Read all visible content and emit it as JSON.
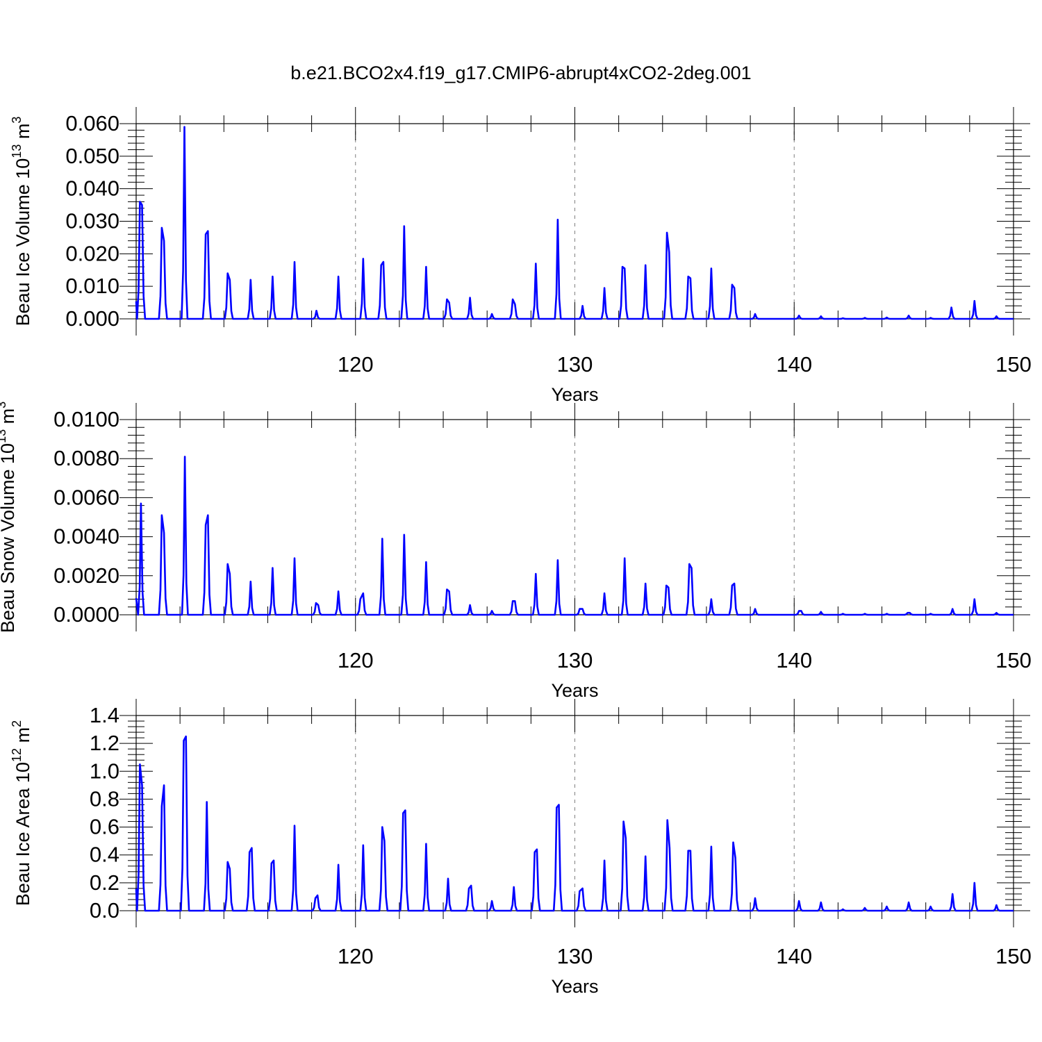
{
  "figure": {
    "title": "b.e21.BCO2x4.f19_g17.CMIP6-abrupt4xCO2-2deg.001"
  },
  "colors": {
    "series": "#0000ff",
    "axis": "#000000",
    "grid": "#7f7f7f"
  },
  "chart_data": [
    {
      "type": "line",
      "ylabel": {
        "text": "Beau Ice Volume 10",
        "sup": "13",
        "unit": " m",
        "unit_sup": "3"
      },
      "xlabel": "Years",
      "xlim": [
        110,
        150
      ],
      "ylim": [
        0,
        0.06
      ],
      "xticks": [
        120,
        130,
        140,
        150
      ],
      "yticks": [
        0,
        0.01,
        0.02,
        0.03,
        0.04,
        0.05,
        0.06
      ],
      "ytick_labels": [
        "0.000",
        "0.010",
        "0.020",
        "0.030",
        "0.040",
        "0.050",
        "0.060"
      ],
      "grid": "dashed vertical at major x ticks",
      "series": [
        {
          "peaks": [
            [
              110.17,
              0.036
            ],
            [
              110.27,
              0.035
            ],
            [
              111.17,
              0.028
            ],
            [
              111.27,
              0.024
            ],
            [
              112.2,
              0.059
            ],
            [
              113.17,
              0.026
            ],
            [
              113.27,
              0.027
            ],
            [
              114.17,
              0.014
            ],
            [
              114.27,
              0.012
            ],
            [
              115.22,
              0.012
            ],
            [
              116.22,
              0.013
            ],
            [
              117.22,
              0.0175
            ],
            [
              118.22,
              0.0025
            ],
            [
              119.22,
              0.013
            ],
            [
              120.35,
              0.0185
            ],
            [
              121.17,
              0.0165
            ],
            [
              121.27,
              0.0175
            ],
            [
              122.22,
              0.0285
            ],
            [
              123.22,
              0.016
            ],
            [
              124.17,
              0.006
            ],
            [
              124.27,
              0.005
            ],
            [
              125.22,
              0.0065
            ],
            [
              126.22,
              0.0015
            ],
            [
              127.17,
              0.006
            ],
            [
              127.27,
              0.0045
            ],
            [
              128.22,
              0.017
            ],
            [
              129.22,
              0.0305
            ],
            [
              130.35,
              0.004
            ],
            [
              131.35,
              0.0095
            ],
            [
              132.17,
              0.016
            ],
            [
              132.27,
              0.0155
            ],
            [
              133.22,
              0.0165
            ],
            [
              134.2,
              0.0265
            ],
            [
              134.3,
              0.0205
            ],
            [
              135.17,
              0.013
            ],
            [
              135.27,
              0.0125
            ],
            [
              136.22,
              0.0155
            ],
            [
              137.17,
              0.0105
            ],
            [
              137.27,
              0.0095
            ],
            [
              138.22,
              0.0015
            ],
            [
              140.22,
              0.001
            ],
            [
              141.22,
              0.0008
            ],
            [
              142.22,
              0.0002
            ],
            [
              143.22,
              0.0003
            ],
            [
              144.22,
              0.0004
            ],
            [
              145.22,
              0.001
            ],
            [
              146.22,
              0.0003
            ],
            [
              147.17,
              0.0035
            ],
            [
              148.22,
              0.0055
            ],
            [
              149.22,
              0.0008
            ]
          ]
        }
      ]
    },
    {
      "type": "line",
      "ylabel": {
        "text": "Beau Snow Volume 10",
        "sup": "13",
        "unit": " m",
        "unit_sup": "3"
      },
      "xlabel": "Years",
      "xlim": [
        110,
        150
      ],
      "ylim": [
        0,
        0.01
      ],
      "xticks": [
        120,
        130,
        140,
        150
      ],
      "yticks": [
        0,
        0.002,
        0.004,
        0.006,
        0.008,
        0.01
      ],
      "ytick_labels": [
        "0.0000",
        "0.0020",
        "0.0040",
        "0.0060",
        "0.0080",
        "0.0100"
      ],
      "grid": "dashed vertical at major x ticks",
      "series": [
        {
          "peaks": [
            [
              110.22,
              0.0057
            ],
            [
              111.17,
              0.0051
            ],
            [
              111.27,
              0.0042
            ],
            [
              112.22,
              0.0081
            ],
            [
              113.17,
              0.0046
            ],
            [
              113.27,
              0.0051
            ],
            [
              114.17,
              0.0026
            ],
            [
              114.27,
              0.0021
            ],
            [
              115.22,
              0.0017
            ],
            [
              116.22,
              0.0024
            ],
            [
              117.22,
              0.0029
            ],
            [
              118.2,
              0.0006
            ],
            [
              118.3,
              0.0005
            ],
            [
              119.22,
              0.0012
            ],
            [
              120.22,
              0.0008
            ],
            [
              120.35,
              0.0011
            ],
            [
              121.22,
              0.0039
            ],
            [
              122.22,
              0.0041
            ],
            [
              123.22,
              0.0027
            ],
            [
              124.17,
              0.0013
            ],
            [
              124.27,
              0.0012
            ],
            [
              125.22,
              0.0005
            ],
            [
              126.22,
              0.0002
            ],
            [
              127.17,
              0.0007
            ],
            [
              127.27,
              0.0007
            ],
            [
              128.22,
              0.0021
            ],
            [
              129.22,
              0.0028
            ],
            [
              130.22,
              0.0003
            ],
            [
              130.35,
              0.0003
            ],
            [
              131.35,
              0.0011
            ],
            [
              132.27,
              0.0029
            ],
            [
              133.22,
              0.0016
            ],
            [
              134.17,
              0.0015
            ],
            [
              134.27,
              0.0014
            ],
            [
              135.22,
              0.0026
            ],
            [
              135.32,
              0.0024
            ],
            [
              136.22,
              0.0008
            ],
            [
              137.17,
              0.0015
            ],
            [
              137.27,
              0.0016
            ],
            [
              138.22,
              0.0003
            ],
            [
              140.22,
              0.0002
            ],
            [
              140.32,
              0.0002
            ],
            [
              141.22,
              0.00015
            ],
            [
              142.22,
              5e-05
            ],
            [
              143.22,
              5e-05
            ],
            [
              144.22,
              5e-05
            ],
            [
              145.17,
              0.0001
            ],
            [
              145.27,
              0.0001
            ],
            [
              146.22,
              5e-05
            ],
            [
              147.22,
              0.0003
            ],
            [
              148.22,
              0.0008
            ],
            [
              149.22,
              0.0001
            ]
          ]
        }
      ]
    },
    {
      "type": "line",
      "ylabel": {
        "text": "Beau Ice Area 10",
        "sup": "12",
        "unit": " m",
        "unit_sup": "2"
      },
      "xlabel": "Years",
      "xlim": [
        110,
        150
      ],
      "ylim": [
        0,
        1.4
      ],
      "xticks": [
        120,
        130,
        140,
        150
      ],
      "yticks": [
        0,
        0.2,
        0.4,
        0.6,
        0.8,
        1.0,
        1.2,
        1.4
      ],
      "ytick_labels": [
        "0.0",
        "0.2",
        "0.4",
        "0.6",
        "0.8",
        "1.0",
        "1.2",
        "1.4"
      ],
      "grid": "dashed vertical at major x ticks",
      "series": [
        {
          "peaks": [
            [
              110.17,
              1.05
            ],
            [
              110.27,
              0.9
            ],
            [
              111.17,
              0.75
            ],
            [
              111.27,
              0.9
            ],
            [
              112.17,
              1.22
            ],
            [
              112.27,
              1.25
            ],
            [
              113.22,
              0.78
            ],
            [
              114.17,
              0.35
            ],
            [
              114.27,
              0.3
            ],
            [
              115.17,
              0.42
            ],
            [
              115.27,
              0.45
            ],
            [
              116.17,
              0.34
            ],
            [
              116.27,
              0.36
            ],
            [
              117.22,
              0.61
            ],
            [
              118.17,
              0.09
            ],
            [
              118.27,
              0.11
            ],
            [
              119.22,
              0.33
            ],
            [
              120.35,
              0.47
            ],
            [
              121.22,
              0.6
            ],
            [
              121.32,
              0.5
            ],
            [
              122.17,
              0.7
            ],
            [
              122.27,
              0.72
            ],
            [
              123.22,
              0.48
            ],
            [
              124.22,
              0.23
            ],
            [
              125.17,
              0.16
            ],
            [
              125.27,
              0.18
            ],
            [
              126.22,
              0.07
            ],
            [
              127.22,
              0.17
            ],
            [
              128.17,
              0.42
            ],
            [
              128.27,
              0.44
            ],
            [
              129.17,
              0.74
            ],
            [
              129.27,
              0.76
            ],
            [
              130.22,
              0.14
            ],
            [
              130.35,
              0.16
            ],
            [
              131.35,
              0.36
            ],
            [
              132.22,
              0.64
            ],
            [
              132.32,
              0.52
            ],
            [
              133.22,
              0.39
            ],
            [
              134.22,
              0.65
            ],
            [
              134.32,
              0.45
            ],
            [
              135.17,
              0.43
            ],
            [
              135.27,
              0.43
            ],
            [
              136.22,
              0.46
            ],
            [
              137.22,
              0.49
            ],
            [
              137.32,
              0.38
            ],
            [
              138.22,
              0.09
            ],
            [
              140.22,
              0.07
            ],
            [
              141.22,
              0.06
            ],
            [
              142.22,
              0.01
            ],
            [
              143.22,
              0.02
            ],
            [
              144.22,
              0.03
            ],
            [
              145.22,
              0.06
            ],
            [
              146.22,
              0.03
            ],
            [
              147.22,
              0.12
            ],
            [
              148.22,
              0.2
            ],
            [
              149.22,
              0.04
            ]
          ]
        }
      ]
    }
  ]
}
